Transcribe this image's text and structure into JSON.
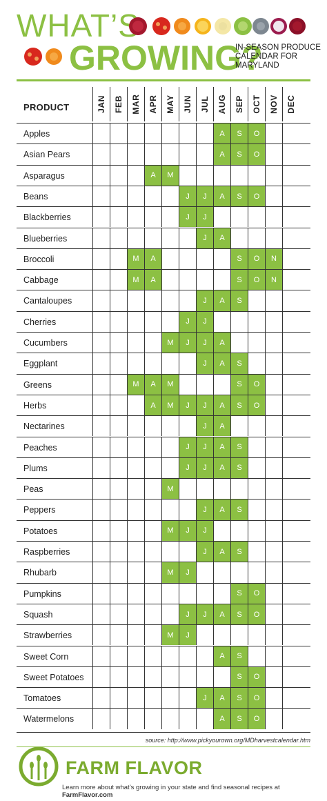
{
  "header": {
    "title_line1": "WHAT’S",
    "title_line2": "GROWING?",
    "subtitle": "IN-SEASON PRODUCE CALENDAR FOR MARYLAND"
  },
  "table": {
    "product_header": "PRODUCT",
    "months": [
      "JAN",
      "FEB",
      "MAR",
      "APR",
      "MAY",
      "JUN",
      "JUL",
      "AUG",
      "SEP",
      "OCT",
      "NOV",
      "DEC"
    ],
    "month_letters": [
      "J",
      "F",
      "M",
      "A",
      "M",
      "J",
      "J",
      "A",
      "S",
      "O",
      "N",
      "D"
    ],
    "rows": [
      {
        "name": "Apples",
        "months": [
          7,
          8,
          9
        ]
      },
      {
        "name": "Asian Pears",
        "months": [
          7,
          8,
          9
        ]
      },
      {
        "name": "Asparagus",
        "months": [
          3,
          4
        ]
      },
      {
        "name": "Beans",
        "months": [
          5,
          6,
          7,
          8,
          9
        ]
      },
      {
        "name": "Blackberries",
        "months": [
          5,
          6
        ]
      },
      {
        "name": "Blueberries",
        "months": [
          6,
          7
        ]
      },
      {
        "name": "Broccoli",
        "months": [
          2,
          3,
          8,
          9,
          10
        ]
      },
      {
        "name": "Cabbage",
        "months": [
          2,
          3,
          8,
          9,
          10
        ]
      },
      {
        "name": "Cantaloupes",
        "months": [
          6,
          7,
          8
        ]
      },
      {
        "name": "Cherries",
        "months": [
          5,
          6
        ]
      },
      {
        "name": "Cucumbers",
        "months": [
          4,
          5,
          6,
          7
        ]
      },
      {
        "name": "Eggplant",
        "months": [
          6,
          7,
          8
        ]
      },
      {
        "name": "Greens",
        "months": [
          2,
          3,
          4,
          8,
          9
        ]
      },
      {
        "name": "Herbs",
        "months": [
          3,
          4,
          5,
          6,
          7,
          8,
          9
        ]
      },
      {
        "name": "Nectarines",
        "months": [
          6,
          7
        ]
      },
      {
        "name": "Peaches",
        "months": [
          5,
          6,
          7,
          8
        ]
      },
      {
        "name": "Plums",
        "months": [
          5,
          6,
          7,
          8
        ]
      },
      {
        "name": "Peas",
        "months": [
          4
        ]
      },
      {
        "name": "Peppers",
        "months": [
          6,
          7,
          8
        ]
      },
      {
        "name": "Potatoes",
        "months": [
          4,
          5,
          6
        ]
      },
      {
        "name": "Raspberries",
        "months": [
          6,
          7,
          8
        ]
      },
      {
        "name": "Rhubarb",
        "months": [
          4,
          5
        ]
      },
      {
        "name": "Pumpkins",
        "months": [
          8,
          9
        ]
      },
      {
        "name": "Squash",
        "months": [
          5,
          6,
          7,
          8,
          9
        ]
      },
      {
        "name": "Strawberries",
        "months": [
          4,
          5
        ]
      },
      {
        "name": "Sweet Corn",
        "months": [
          7,
          8
        ]
      },
      {
        "name": "Sweet Potatoes",
        "months": [
          8,
          9
        ]
      },
      {
        "name": "Tomatoes",
        "months": [
          6,
          7,
          8,
          9
        ]
      },
      {
        "name": "Watermelons",
        "months": [
          7,
          8,
          9
        ]
      }
    ]
  },
  "source": "source: http://www.pickyourown.org/MDharvestcalendar.htm",
  "footer": {
    "brand": "FARM FLAVOR",
    "tagline_prefix": "Learn more about what’s growing in your state and find seasonal recipes at ",
    "tagline_link": "FarmFlavor.com"
  },
  "colors": {
    "accent": "#8cc043",
    "brand": "#7bab2f"
  }
}
